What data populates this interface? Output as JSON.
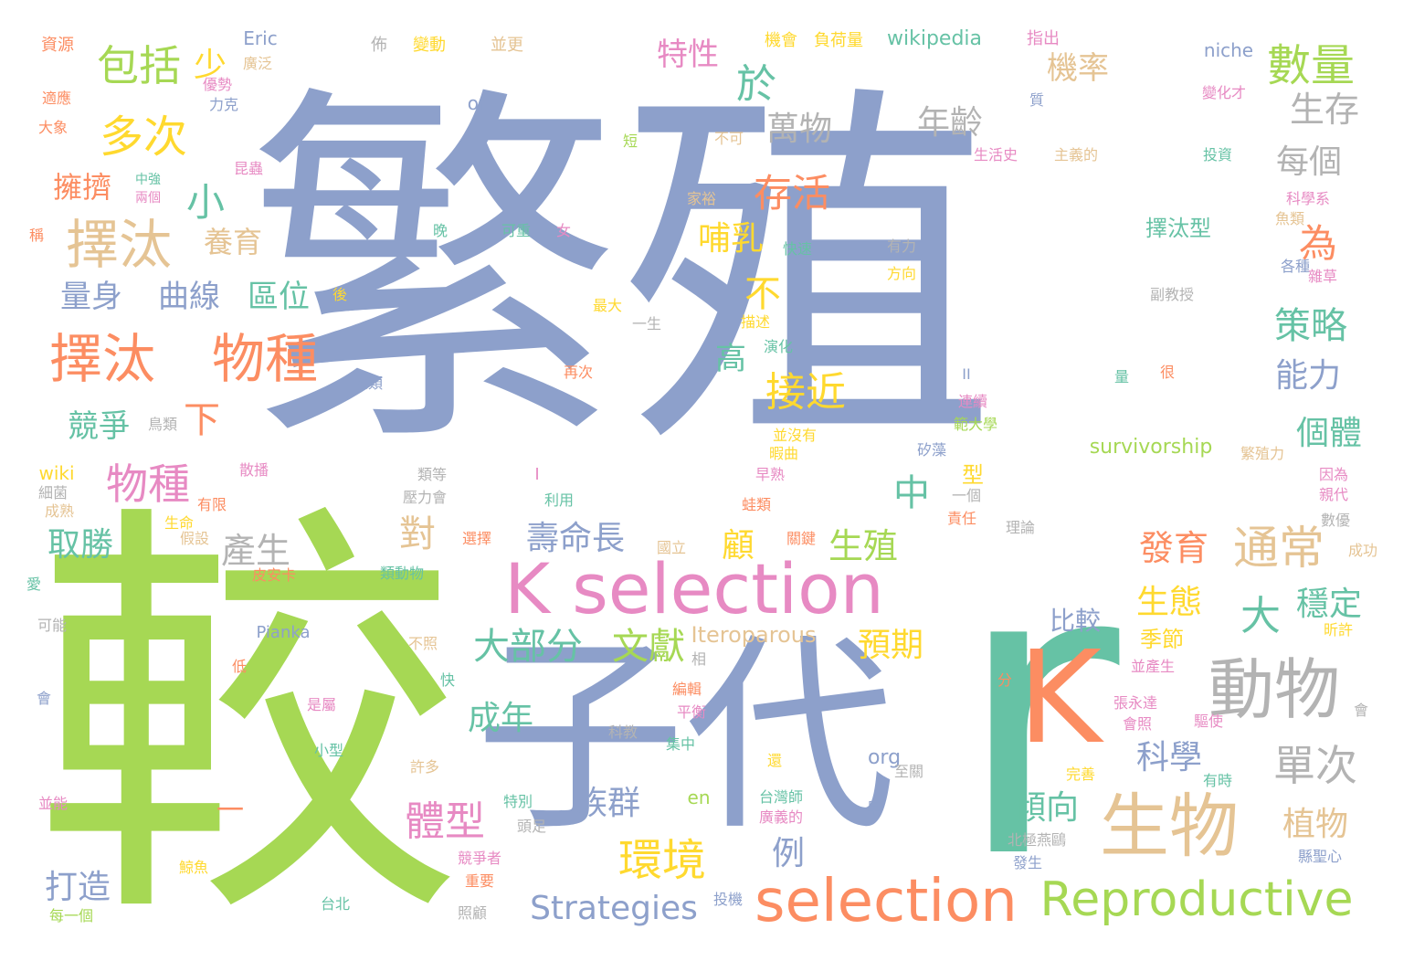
{
  "title": "",
  "palette": {
    "blue": "#8da0cb",
    "orange": "#fc8d62",
    "green": "#a6d854",
    "teal": "#66c2a5",
    "pink": "#e78ac3",
    "yellow": "#ffd92f",
    "tan": "#e5c494",
    "gray": "#b3b3b3"
  },
  "words": [
    {
      "text": "繁殖",
      "c": "blue"
    },
    {
      "text": "較",
      "c": "green"
    },
    {
      "text": "r",
      "c": "teal"
    },
    {
      "text": "子代",
      "c": "blue"
    },
    {
      "text": "K",
      "c": "orange"
    },
    {
      "text": "K selection",
      "c": "pink"
    },
    {
      "text": "selection",
      "c": "orange"
    },
    {
      "text": "Reproductive",
      "c": "green"
    },
    {
      "text": "生物",
      "c": "tan"
    },
    {
      "text": "動物",
      "c": "gray"
    },
    {
      "text": "Strategies",
      "c": "blue"
    },
    {
      "text": "擇汰",
      "c": "tan"
    },
    {
      "text": "擇汰",
      "c": "orange"
    },
    {
      "text": "物種",
      "c": "orange"
    },
    {
      "text": "數量",
      "c": "green"
    },
    {
      "text": "多次",
      "c": "yellow"
    },
    {
      "text": "包括",
      "c": "green"
    },
    {
      "text": "環境",
      "c": "yellow"
    },
    {
      "text": "通常",
      "c": "tan"
    },
    {
      "text": "單次",
      "c": "gray"
    },
    {
      "text": "大部分",
      "c": "teal"
    },
    {
      "text": "文獻",
      "c": "green"
    },
    {
      "text": "體型",
      "c": "pink"
    },
    {
      "text": "物種",
      "c": "pink"
    },
    {
      "text": "接近",
      "c": "yellow"
    },
    {
      "text": "存活",
      "c": "orange"
    },
    {
      "text": "策略",
      "c": "teal"
    },
    {
      "text": "為",
      "c": "orange"
    },
    {
      "text": "擁擠",
      "c": "orange"
    },
    {
      "text": "養育",
      "c": "tan"
    },
    {
      "text": "區位",
      "c": "teal"
    },
    {
      "text": "曲線",
      "c": "blue"
    },
    {
      "text": "量身",
      "c": "blue"
    },
    {
      "text": "萬物",
      "c": "gray"
    },
    {
      "text": "年齡",
      "c": "gray"
    },
    {
      "text": "機率",
      "c": "tan"
    },
    {
      "text": "特性",
      "c": "pink"
    },
    {
      "text": "於",
      "c": "teal"
    },
    {
      "text": "少",
      "c": "yellow"
    },
    {
      "text": "生存",
      "c": "gray"
    },
    {
      "text": "每個",
      "c": "gray"
    },
    {
      "text": "小",
      "c": "teal"
    },
    {
      "text": "哺乳",
      "c": "yellow"
    },
    {
      "text": "不",
      "c": "yellow"
    },
    {
      "text": "能力",
      "c": "blue"
    },
    {
      "text": "高",
      "c": "teal"
    },
    {
      "text": "下",
      "c": "orange"
    },
    {
      "text": "競爭",
      "c": "teal"
    },
    {
      "text": "個體",
      "c": "teal"
    },
    {
      "text": "中",
      "c": "teal"
    },
    {
      "text": "對",
      "c": "tan"
    },
    {
      "text": "取勝",
      "c": "teal"
    },
    {
      "text": "產生",
      "c": "gray"
    },
    {
      "text": "壽命長",
      "c": "blue"
    },
    {
      "text": "顧",
      "c": "yellow"
    },
    {
      "text": "生殖",
      "c": "green"
    },
    {
      "text": "發育",
      "c": "orange"
    },
    {
      "text": "大",
      "c": "teal"
    },
    {
      "text": "穩定",
      "c": "teal"
    },
    {
      "text": "生態",
      "c": "yellow"
    },
    {
      "text": "預期",
      "c": "yellow"
    },
    {
      "text": "成年",
      "c": "teal"
    },
    {
      "text": "科學",
      "c": "blue"
    },
    {
      "text": "族群",
      "c": "blue"
    },
    {
      "text": "傾向",
      "c": "teal"
    },
    {
      "text": "植物",
      "c": "tan"
    },
    {
      "text": "打造",
      "c": "blue"
    },
    {
      "text": "例",
      "c": "blue"
    },
    {
      "text": "比較",
      "c": "blue"
    },
    {
      "text": "季節",
      "c": "yellow"
    },
    {
      "text": "擇汰型",
      "c": "teal"
    },
    {
      "text": "一",
      "c": "orange"
    },
    {
      "text": "型",
      "c": "yellow"
    },
    {
      "text": "wikipedia",
      "c": "teal"
    },
    {
      "text": "Iteroparous",
      "c": "tan"
    },
    {
      "text": "survivorship",
      "c": "green"
    },
    {
      "text": "org",
      "c": "blue"
    },
    {
      "text": "en",
      "c": "green"
    },
    {
      "text": "wiki",
      "c": "yellow"
    },
    {
      "text": "Pianka",
      "c": "blue"
    },
    {
      "text": "Eric",
      "c": "blue"
    },
    {
      "text": "or",
      "c": "blue"
    },
    {
      "text": "niche",
      "c": "blue"
    },
    {
      "text": "II",
      "c": "blue"
    },
    {
      "text": "I",
      "c": "pink"
    },
    {
      "text": "資源",
      "c": "orange"
    },
    {
      "text": "佈",
      "c": "gray"
    },
    {
      "text": "變動",
      "c": "yellow"
    },
    {
      "text": "並更",
      "c": "tan"
    },
    {
      "text": "機會",
      "c": "yellow"
    },
    {
      "text": "負荷量",
      "c": "yellow"
    },
    {
      "text": "指出",
      "c": "pink"
    },
    {
      "text": "廣泛",
      "c": "tan"
    },
    {
      "text": "優勢",
      "c": "pink"
    },
    {
      "text": "力克",
      "c": "blue"
    },
    {
      "text": "適應",
      "c": "orange"
    },
    {
      "text": "大象",
      "c": "orange"
    },
    {
      "text": "變化才",
      "c": "pink"
    },
    {
      "text": "質",
      "c": "blue"
    },
    {
      "text": "短",
      "c": "green"
    },
    {
      "text": "不可",
      "c": "tan"
    },
    {
      "text": "生活史",
      "c": "pink"
    },
    {
      "text": "主義的",
      "c": "tan"
    },
    {
      "text": "投資",
      "c": "teal"
    },
    {
      "text": "昆蟲",
      "c": "pink"
    },
    {
      "text": "中強",
      "c": "teal"
    },
    {
      "text": "兩個",
      "c": "pink"
    },
    {
      "text": "家裕",
      "c": "tan"
    },
    {
      "text": "科學系",
      "c": "pink"
    },
    {
      "text": "魚類",
      "c": "tan"
    },
    {
      "text": "稱",
      "c": "orange"
    },
    {
      "text": "晚",
      "c": "teal"
    },
    {
      "text": "可重",
      "c": "teal"
    },
    {
      "text": "女",
      "c": "pink"
    },
    {
      "text": "快速",
      "c": "teal"
    },
    {
      "text": "有力",
      "c": "gray"
    },
    {
      "text": "方向",
      "c": "yellow"
    },
    {
      "text": "各種",
      "c": "blue"
    },
    {
      "text": "雜草",
      "c": "pink"
    },
    {
      "text": "最大",
      "c": "yellow"
    },
    {
      "text": "後",
      "c": "yellow"
    },
    {
      "text": "副教授",
      "c": "gray"
    },
    {
      "text": "描述",
      "c": "yellow"
    },
    {
      "text": "演化",
      "c": "teal"
    },
    {
      "text": "一生",
      "c": "gray"
    },
    {
      "text": "再次",
      "c": "orange"
    },
    {
      "text": "人類",
      "c": "blue"
    },
    {
      "text": "量",
      "c": "teal"
    },
    {
      "text": "很",
      "c": "orange"
    },
    {
      "text": "連續",
      "c": "pink"
    },
    {
      "text": "範大學",
      "c": "green"
    },
    {
      "text": "鳥類",
      "c": "gray"
    },
    {
      "text": "並沒有",
      "c": "yellow"
    },
    {
      "text": "暇曲",
      "c": "yellow"
    },
    {
      "text": "矽藻",
      "c": "blue"
    },
    {
      "text": "繁殖力",
      "c": "tan"
    },
    {
      "text": "散播",
      "c": "pink"
    },
    {
      "text": "類等",
      "c": "gray"
    },
    {
      "text": "早熟",
      "c": "pink"
    },
    {
      "text": "因為",
      "c": "pink"
    },
    {
      "text": "親代",
      "c": "pink"
    },
    {
      "text": "細菌",
      "c": "gray"
    },
    {
      "text": "成熟",
      "c": "tan"
    },
    {
      "text": "有限",
      "c": "orange"
    },
    {
      "text": "壓力會",
      "c": "gray"
    },
    {
      "text": "利用",
      "c": "teal"
    },
    {
      "text": "蛙類",
      "c": "orange"
    },
    {
      "text": "一個",
      "c": "gray"
    },
    {
      "text": "數優",
      "c": "gray"
    },
    {
      "text": "責任",
      "c": "orange"
    },
    {
      "text": "生命",
      "c": "yellow"
    },
    {
      "text": "假設",
      "c": "tan"
    },
    {
      "text": "選擇",
      "c": "orange"
    },
    {
      "text": "國立",
      "c": "tan"
    },
    {
      "text": "關鍵",
      "c": "orange"
    },
    {
      "text": "理論",
      "c": "gray"
    },
    {
      "text": "成功",
      "c": "tan"
    },
    {
      "text": "愛",
      "c": "teal"
    },
    {
      "text": "皮安卡",
      "c": "orange"
    },
    {
      "text": "類動物",
      "c": "teal"
    },
    {
      "text": "不照",
      "c": "tan"
    },
    {
      "text": "昕許",
      "c": "yellow"
    },
    {
      "text": "可能",
      "c": "gray"
    },
    {
      "text": "相",
      "c": "gray"
    },
    {
      "text": "低",
      "c": "orange"
    },
    {
      "text": "並產生",
      "c": "pink"
    },
    {
      "text": "分",
      "c": "orange"
    },
    {
      "text": "會",
      "c": "blue"
    },
    {
      "text": "是屬",
      "c": "pink"
    },
    {
      "text": "快",
      "c": "teal"
    },
    {
      "text": "編輯",
      "c": "orange"
    },
    {
      "text": "平衡",
      "c": "pink"
    },
    {
      "text": "張永達",
      "c": "pink"
    },
    {
      "text": "會",
      "c": "gray"
    },
    {
      "text": "會照",
      "c": "pink"
    },
    {
      "text": "驅使",
      "c": "pink"
    },
    {
      "text": "集中",
      "c": "teal"
    },
    {
      "text": "科教",
      "c": "gray"
    },
    {
      "text": "小型",
      "c": "teal"
    },
    {
      "text": "還",
      "c": "yellow"
    },
    {
      "text": "許多",
      "c": "tan"
    },
    {
      "text": "至關",
      "c": "gray"
    },
    {
      "text": "完善",
      "c": "yellow"
    },
    {
      "text": "有時",
      "c": "teal"
    },
    {
      "text": "並能",
      "c": "pink"
    },
    {
      "text": "特別",
      "c": "teal"
    },
    {
      "text": "台灣師",
      "c": "teal"
    },
    {
      "text": "廣義的",
      "c": "pink"
    },
    {
      "text": "早",
      "c": "blue"
    },
    {
      "text": "頭足",
      "c": "gray"
    },
    {
      "text": "北極燕鷗",
      "c": "gray"
    },
    {
      "text": "縣聖心",
      "c": "blue"
    },
    {
      "text": "競爭者",
      "c": "pink"
    },
    {
      "text": "重要",
      "c": "orange"
    },
    {
      "text": "鯨魚",
      "c": "yellow"
    },
    {
      "text": "發生",
      "c": "blue"
    },
    {
      "text": "台北",
      "c": "teal"
    },
    {
      "text": "投機",
      "c": "blue"
    },
    {
      "text": "照顧",
      "c": "gray"
    },
    {
      "text": "每一個",
      "c": "green"
    }
  ]
}
